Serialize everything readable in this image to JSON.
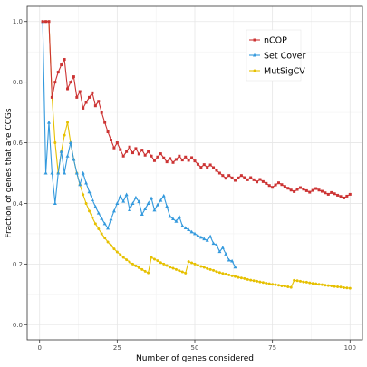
{
  "chart_data": {
    "type": "line",
    "xlabel": "Number of genes considered",
    "ylabel": "Fraction of genes that are CCGs",
    "xlim": [
      -4,
      104
    ],
    "ylim": [
      -0.05,
      1.05
    ],
    "xticks": [
      0,
      25,
      50,
      75,
      100
    ],
    "yticks": [
      0.0,
      0.2,
      0.4,
      0.6,
      0.8,
      1.0
    ],
    "grid": true,
    "legend_position": "top-right",
    "series": [
      {
        "name": "nCOP",
        "color": "#cc3333",
        "marker": "square",
        "x": [
          1,
          2,
          3,
          4,
          5,
          6,
          7,
          8,
          9,
          10,
          11,
          12,
          13,
          14,
          15,
          16,
          17,
          18,
          19,
          20,
          21,
          22,
          23,
          24,
          25,
          26,
          27,
          28,
          29,
          30,
          31,
          32,
          33,
          34,
          35,
          36,
          37,
          38,
          39,
          40,
          41,
          42,
          43,
          44,
          45,
          46,
          47,
          48,
          49,
          50,
          51,
          52,
          53,
          54,
          55,
          56,
          57,
          58,
          59,
          60,
          61,
          62,
          63,
          64,
          65,
          66,
          67,
          68,
          69,
          70,
          71,
          72,
          73,
          74,
          75,
          76,
          77,
          78,
          79,
          80,
          81,
          82,
          83,
          84,
          85,
          86,
          87,
          88,
          89,
          90,
          91,
          92,
          93,
          94,
          95,
          96,
          97,
          98,
          99,
          100
        ],
        "y": [
          1.0,
          1.0,
          1.0,
          0.75,
          0.8,
          0.833,
          0.857,
          0.875,
          0.778,
          0.8,
          0.818,
          0.75,
          0.769,
          0.714,
          0.733,
          0.75,
          0.765,
          0.722,
          0.737,
          0.7,
          0.667,
          0.636,
          0.609,
          0.583,
          0.6,
          0.577,
          0.556,
          0.571,
          0.586,
          0.567,
          0.581,
          0.563,
          0.576,
          0.559,
          0.571,
          0.556,
          0.541,
          0.553,
          0.564,
          0.55,
          0.537,
          0.548,
          0.535,
          0.545,
          0.556,
          0.543,
          0.553,
          0.542,
          0.551,
          0.54,
          0.529,
          0.519,
          0.528,
          0.519,
          0.527,
          0.518,
          0.509,
          0.5,
          0.492,
          0.483,
          0.492,
          0.484,
          0.476,
          0.484,
          0.492,
          0.485,
          0.478,
          0.485,
          0.478,
          0.471,
          0.479,
          0.472,
          0.466,
          0.459,
          0.453,
          0.461,
          0.468,
          0.462,
          0.456,
          0.45,
          0.444,
          0.439,
          0.446,
          0.452,
          0.447,
          0.442,
          0.437,
          0.443,
          0.449,
          0.444,
          0.44,
          0.435,
          0.43,
          0.436,
          0.432,
          0.427,
          0.423,
          0.418,
          0.424,
          0.43
        ]
      },
      {
        "name": "Set Cover",
        "color": "#3399dd",
        "marker": "triangle",
        "x": [
          1,
          2,
          3,
          4,
          5,
          6,
          7,
          8,
          9,
          10,
          11,
          12,
          13,
          14,
          15,
          16,
          17,
          18,
          19,
          20,
          21,
          22,
          23,
          24,
          25,
          26,
          27,
          28,
          29,
          30,
          31,
          32,
          33,
          34,
          35,
          36,
          37,
          38,
          39,
          40,
          41,
          42,
          43,
          44,
          45,
          46,
          47,
          48,
          49,
          50,
          51,
          52,
          53,
          54,
          55,
          56,
          57,
          58,
          59,
          60,
          61,
          62,
          63
        ],
        "y": [
          1.0,
          0.5,
          0.667,
          0.5,
          0.4,
          0.5,
          0.571,
          0.5,
          0.556,
          0.6,
          0.545,
          0.5,
          0.462,
          0.5,
          0.467,
          0.438,
          0.412,
          0.389,
          0.368,
          0.35,
          0.333,
          0.318,
          0.348,
          0.375,
          0.4,
          0.423,
          0.407,
          0.429,
          0.379,
          0.4,
          0.419,
          0.406,
          0.364,
          0.382,
          0.4,
          0.417,
          0.378,
          0.395,
          0.41,
          0.425,
          0.39,
          0.357,
          0.349,
          0.341,
          0.356,
          0.326,
          0.319,
          0.313,
          0.306,
          0.3,
          0.294,
          0.288,
          0.283,
          0.278,
          0.291,
          0.268,
          0.263,
          0.241,
          0.254,
          0.233,
          0.213,
          0.21,
          0.19
        ]
      },
      {
        "name": "MutSigCV",
        "color": "#e6c000",
        "marker": "circle",
        "x": [
          1,
          2,
          3,
          4,
          5,
          6,
          7,
          8,
          9,
          10,
          11,
          12,
          13,
          14,
          15,
          16,
          17,
          18,
          19,
          20,
          21,
          22,
          23,
          24,
          25,
          26,
          27,
          28,
          29,
          30,
          31,
          32,
          33,
          34,
          35,
          36,
          37,
          38,
          39,
          40,
          41,
          42,
          43,
          44,
          45,
          46,
          47,
          48,
          49,
          50,
          51,
          52,
          53,
          54,
          55,
          56,
          57,
          58,
          59,
          60,
          61,
          62,
          63,
          64,
          65,
          66,
          67,
          68,
          69,
          70,
          71,
          72,
          73,
          74,
          75,
          76,
          77,
          78,
          79,
          80,
          81,
          82,
          83,
          84,
          85,
          86,
          87,
          88,
          89,
          90,
          91,
          92,
          93,
          94,
          95,
          96,
          97,
          98,
          99,
          100
        ],
        "y": [
          1.0,
          1.0,
          1.0,
          0.75,
          0.6,
          0.5,
          0.571,
          0.625,
          0.667,
          0.6,
          0.545,
          0.5,
          0.462,
          0.429,
          0.4,
          0.375,
          0.353,
          0.333,
          0.316,
          0.3,
          0.286,
          0.273,
          0.261,
          0.25,
          0.24,
          0.231,
          0.222,
          0.214,
          0.207,
          0.2,
          0.194,
          0.188,
          0.182,
          0.176,
          0.171,
          0.222,
          0.216,
          0.211,
          0.205,
          0.2,
          0.195,
          0.19,
          0.186,
          0.182,
          0.178,
          0.174,
          0.17,
          0.208,
          0.204,
          0.2,
          0.196,
          0.192,
          0.189,
          0.185,
          0.182,
          0.179,
          0.175,
          0.172,
          0.169,
          0.167,
          0.164,
          0.161,
          0.159,
          0.156,
          0.154,
          0.152,
          0.149,
          0.147,
          0.145,
          0.143,
          0.141,
          0.139,
          0.137,
          0.135,
          0.133,
          0.132,
          0.13,
          0.128,
          0.127,
          0.125,
          0.123,
          0.146,
          0.145,
          0.143,
          0.141,
          0.14,
          0.138,
          0.136,
          0.135,
          0.133,
          0.132,
          0.13,
          0.129,
          0.128,
          0.126,
          0.125,
          0.124,
          0.122,
          0.121,
          0.12
        ]
      }
    ]
  }
}
